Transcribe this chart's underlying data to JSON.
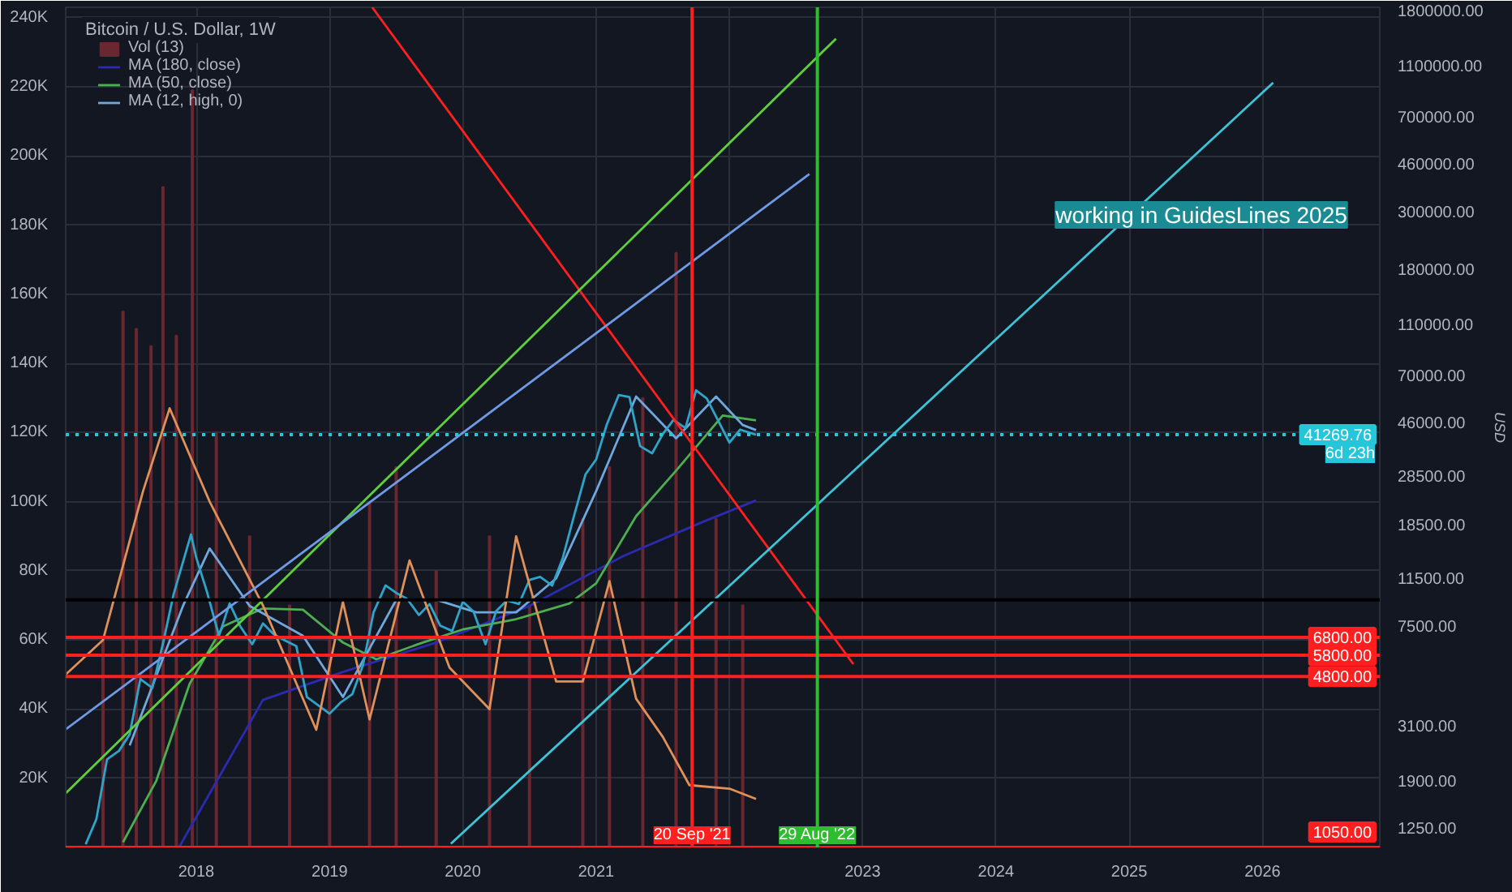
{
  "chart_data": {
    "type": "line",
    "title": "Bitcoin / U.S. Dollar, 1W",
    "y2label": "USD",
    "xlim": [
      2017.02,
      2026.88
    ],
    "xticks": [
      {
        "value": 2018,
        "label": "2018"
      },
      {
        "value": 2019,
        "label": "2019"
      },
      {
        "value": 2020,
        "label": "2020"
      },
      {
        "value": 2021,
        "label": "2021"
      },
      {
        "value": 2022,
        "label": null
      },
      {
        "value": 2023,
        "label": "2023"
      },
      {
        "value": 2024,
        "label": "2024"
      },
      {
        "value": 2025,
        "label": "2025"
      },
      {
        "value": 2026,
        "label": "2026"
      }
    ],
    "ylim": [
      0,
      243000
    ],
    "yticks": [
      {
        "value": 20000,
        "label": "20K"
      },
      {
        "value": 40000,
        "label": "40K"
      },
      {
        "value": 60000,
        "label": "60K"
      },
      {
        "value": 80000,
        "label": "80K"
      },
      {
        "value": 100000,
        "label": "100K"
      },
      {
        "value": 120000,
        "label": "120K"
      },
      {
        "value": 140000,
        "label": "140K"
      },
      {
        "value": 160000,
        "label": "160K"
      },
      {
        "value": 180000,
        "label": "180K"
      },
      {
        "value": 200000,
        "label": "200K"
      },
      {
        "value": 220000,
        "label": "220K"
      },
      {
        "value": 240000,
        "label": "240K"
      }
    ],
    "y2lim": [
      1050,
      1850000
    ],
    "y2ticks": [
      {
        "value": 1250,
        "label": "1250.00"
      },
      {
        "value": 1900,
        "label": "1900.00"
      },
      {
        "value": 3100,
        "label": "3100.00"
      },
      {
        "value": 7500,
        "label": "7500.00"
      },
      {
        "value": 11500,
        "label": "11500.00"
      },
      {
        "value": 18500,
        "label": "18500.00"
      },
      {
        "value": 28500,
        "label": "28500.00"
      },
      {
        "value": 46000,
        "label": "46000.00"
      },
      {
        "value": 70000,
        "label": "70000.00"
      },
      {
        "value": 110000,
        "label": "110000.00"
      },
      {
        "value": 180000,
        "label": "180000.00"
      },
      {
        "value": 300000,
        "label": "300000.00"
      },
      {
        "value": 460000,
        "label": "460000.00"
      },
      {
        "value": 700000,
        "label": "700000.00"
      },
      {
        "value": 1100000,
        "label": "1100000.00"
      },
      {
        "value": 1800000,
        "label": "1800000.00"
      }
    ],
    "log": "y2",
    "grid": true,
    "legend": "top left",
    "series": [
      {
        "name": "Vol (13)",
        "type": "bar",
        "color": "#6b2730",
        "x": [
          2017.3,
          2017.45,
          2017.55,
          2017.66,
          2017.75,
          2017.85,
          2017.97,
          2018.15,
          2018.4,
          2018.7,
          2019.0,
          2019.3,
          2019.5,
          2019.8,
          2020.2,
          2020.5,
          2020.9,
          2021.1,
          2021.35,
          2021.6,
          2021.9,
          2022.1
        ],
        "values": [
          60000,
          155000,
          150000,
          145000,
          191000,
          148000,
          219000,
          120000,
          90000,
          70000,
          60000,
          100000,
          110000,
          80000,
          90000,
          70000,
          95000,
          110000,
          130000,
          172000,
          95000,
          70000
        ]
      },
      {
        "name": "MA (180, close)",
        "axis": "y2",
        "color": "#2b2bb0",
        "x": [
          2017.87,
          2018.5,
          2019.1,
          2019.8,
          2020.5,
          2021.2,
          2021.8,
          2022.2
        ],
        "values": [
          1050,
          3900,
          5000,
          6500,
          9000,
          14000,
          19000,
          23000
        ]
      },
      {
        "name": "MA (50, close)",
        "axis": "y2",
        "color": "#4caf50",
        "x": [
          2017.45,
          2017.7,
          2017.95,
          2018.2,
          2018.5,
          2018.8,
          2019.1,
          2019.35,
          2019.7,
          2020.0,
          2020.4,
          2020.8,
          2021.0,
          2021.3,
          2021.6,
          2021.95,
          2022.2
        ],
        "values": [
          1100,
          1900,
          4500,
          7500,
          8800,
          8700,
          6500,
          5600,
          6500,
          7300,
          8000,
          9200,
          11000,
          20000,
          30000,
          49000,
          46900
        ]
      },
      {
        "name": "MA (12, high, 0)",
        "axis": "y2",
        "color": "#6fa8dc",
        "x": [
          2017.5,
          2017.9,
          2018.1,
          2018.4,
          2018.8,
          2019.1,
          2019.5,
          2019.8,
          2020.1,
          2020.4,
          2020.7,
          2021.0,
          2021.3,
          2021.6,
          2021.9,
          2022.1,
          2022.2
        ],
        "values": [
          2600,
          9000,
          15000,
          9000,
          6900,
          4000,
          9500,
          9500,
          8500,
          8500,
          11500,
          25000,
          58000,
          40000,
          58000,
          45000,
          43000
        ]
      },
      {
        "axis": "y2",
        "color": "#2fa4c8",
        "x": [
          2017.17,
          2017.25,
          2017.33,
          2017.42,
          2017.5,
          2017.58,
          2017.67,
          2017.75,
          2017.83,
          2017.96,
          2018.0,
          2018.08,
          2018.17,
          2018.25,
          2018.33,
          2018.42,
          2018.5,
          2018.58,
          2018.67,
          2018.75,
          2018.83,
          2018.92,
          2019.0,
          2019.08,
          2019.17,
          2019.25,
          2019.33,
          2019.42,
          2019.5,
          2019.58,
          2019.67,
          2019.75,
          2019.83,
          2019.92,
          2020.0,
          2020.08,
          2020.17,
          2020.25,
          2020.33,
          2020.42,
          2020.5,
          2020.58,
          2020.67,
          2020.75,
          2020.83,
          2020.92,
          2021.0,
          2021.08,
          2021.17,
          2021.25,
          2021.33,
          2021.42,
          2021.5,
          2021.58,
          2021.67,
          2021.75,
          2021.83,
          2021.92,
          2022.0,
          2022.08,
          2022.2
        ],
        "values": [
          1080,
          1350,
          2300,
          2480,
          2870,
          4700,
          4340,
          6450,
          10000,
          17000,
          13800,
          10200,
          6900,
          9200,
          7500,
          6400,
          7700,
          7000,
          6600,
          6300,
          4000,
          3700,
          3450,
          3800,
          4100,
          5300,
          8500,
          10800,
          10100,
          9600,
          8300,
          9150,
          7550,
          7200,
          9350,
          8550,
          6400,
          8600,
          9450,
          9150,
          11350,
          11650,
          10780,
          13800,
          19700,
          29000,
          33100,
          45200,
          58800,
          57700,
          37300,
          35000,
          41500,
          47100,
          43800,
          61300,
          57000,
          46300,
          38500,
          43200,
          41269.76
        ]
      },
      {
        "color": "#e0915a",
        "x": [
          2017.02,
          2017.3,
          2017.6,
          2017.8,
          2018.1,
          2018.5,
          2018.9,
          2019.1,
          2019.3,
          2019.6,
          2019.9,
          2020.2,
          2020.4,
          2020.7,
          2020.9,
          2021.1,
          2021.3,
          2021.5,
          2021.7,
          2022.0,
          2022.2
        ],
        "values": [
          50000,
          60000,
          103000,
          127000,
          100000,
          70000,
          34000,
          71000,
          37000,
          83000,
          52000,
          40000,
          90000,
          48000,
          48000,
          77000,
          43000,
          32000,
          18000,
          17000,
          14000
        ]
      },
      {
        "axis": "y2",
        "color": "#ff1f1f",
        "x": [
          2019.32,
          2022.93
        ],
        "values": [
          1850000,
          5360
        ]
      },
      {
        "axis": "y2",
        "color": "#3cc4d8",
        "x": [
          2019.91,
          2026.08
        ],
        "values": [
          1085,
          946000
        ]
      },
      {
        "axis": "y2",
        "color": "#5ed13a",
        "x": [
          2017.02,
          2022.8
        ],
        "values": [
          1700,
          1400000
        ]
      },
      {
        "axis": "y2",
        "color": "#6f9be6",
        "x": [
          2017.02,
          2022.6
        ],
        "values": [
          3000,
          420000
        ]
      }
    ],
    "ref_lines": [
      {
        "axis": "y2",
        "value": 6800,
        "label": "6800.00",
        "color": "#ff1f1f"
      },
      {
        "axis": "y2",
        "value": 5800,
        "label": "5800.00",
        "color": "#ff1f1f"
      },
      {
        "axis": "y2",
        "value": 4800,
        "label": "4800.00",
        "color": "#ff1f1f"
      },
      {
        "axis": "y2",
        "value": 1050,
        "label": "1050.00",
        "color": "#ff1f1f"
      },
      {
        "axis": "y2",
        "value": 41269.76,
        "label": "41269.76",
        "color": "#26c6da",
        "line_style": "dotted"
      },
      {
        "axis": "y2",
        "value": 9500,
        "label": null,
        "color": "#000000"
      },
      {
        "axis": "x",
        "value": 2021.72,
        "label": "20 Sep '21",
        "color": "#ff1f1f"
      },
      {
        "axis": "x",
        "value": 2022.66,
        "label": "29 Aug '22",
        "color": "#2ebd2e"
      }
    ],
    "annotations": [
      "working in GuidesLines 2025",
      "6d 23h"
    ]
  }
}
